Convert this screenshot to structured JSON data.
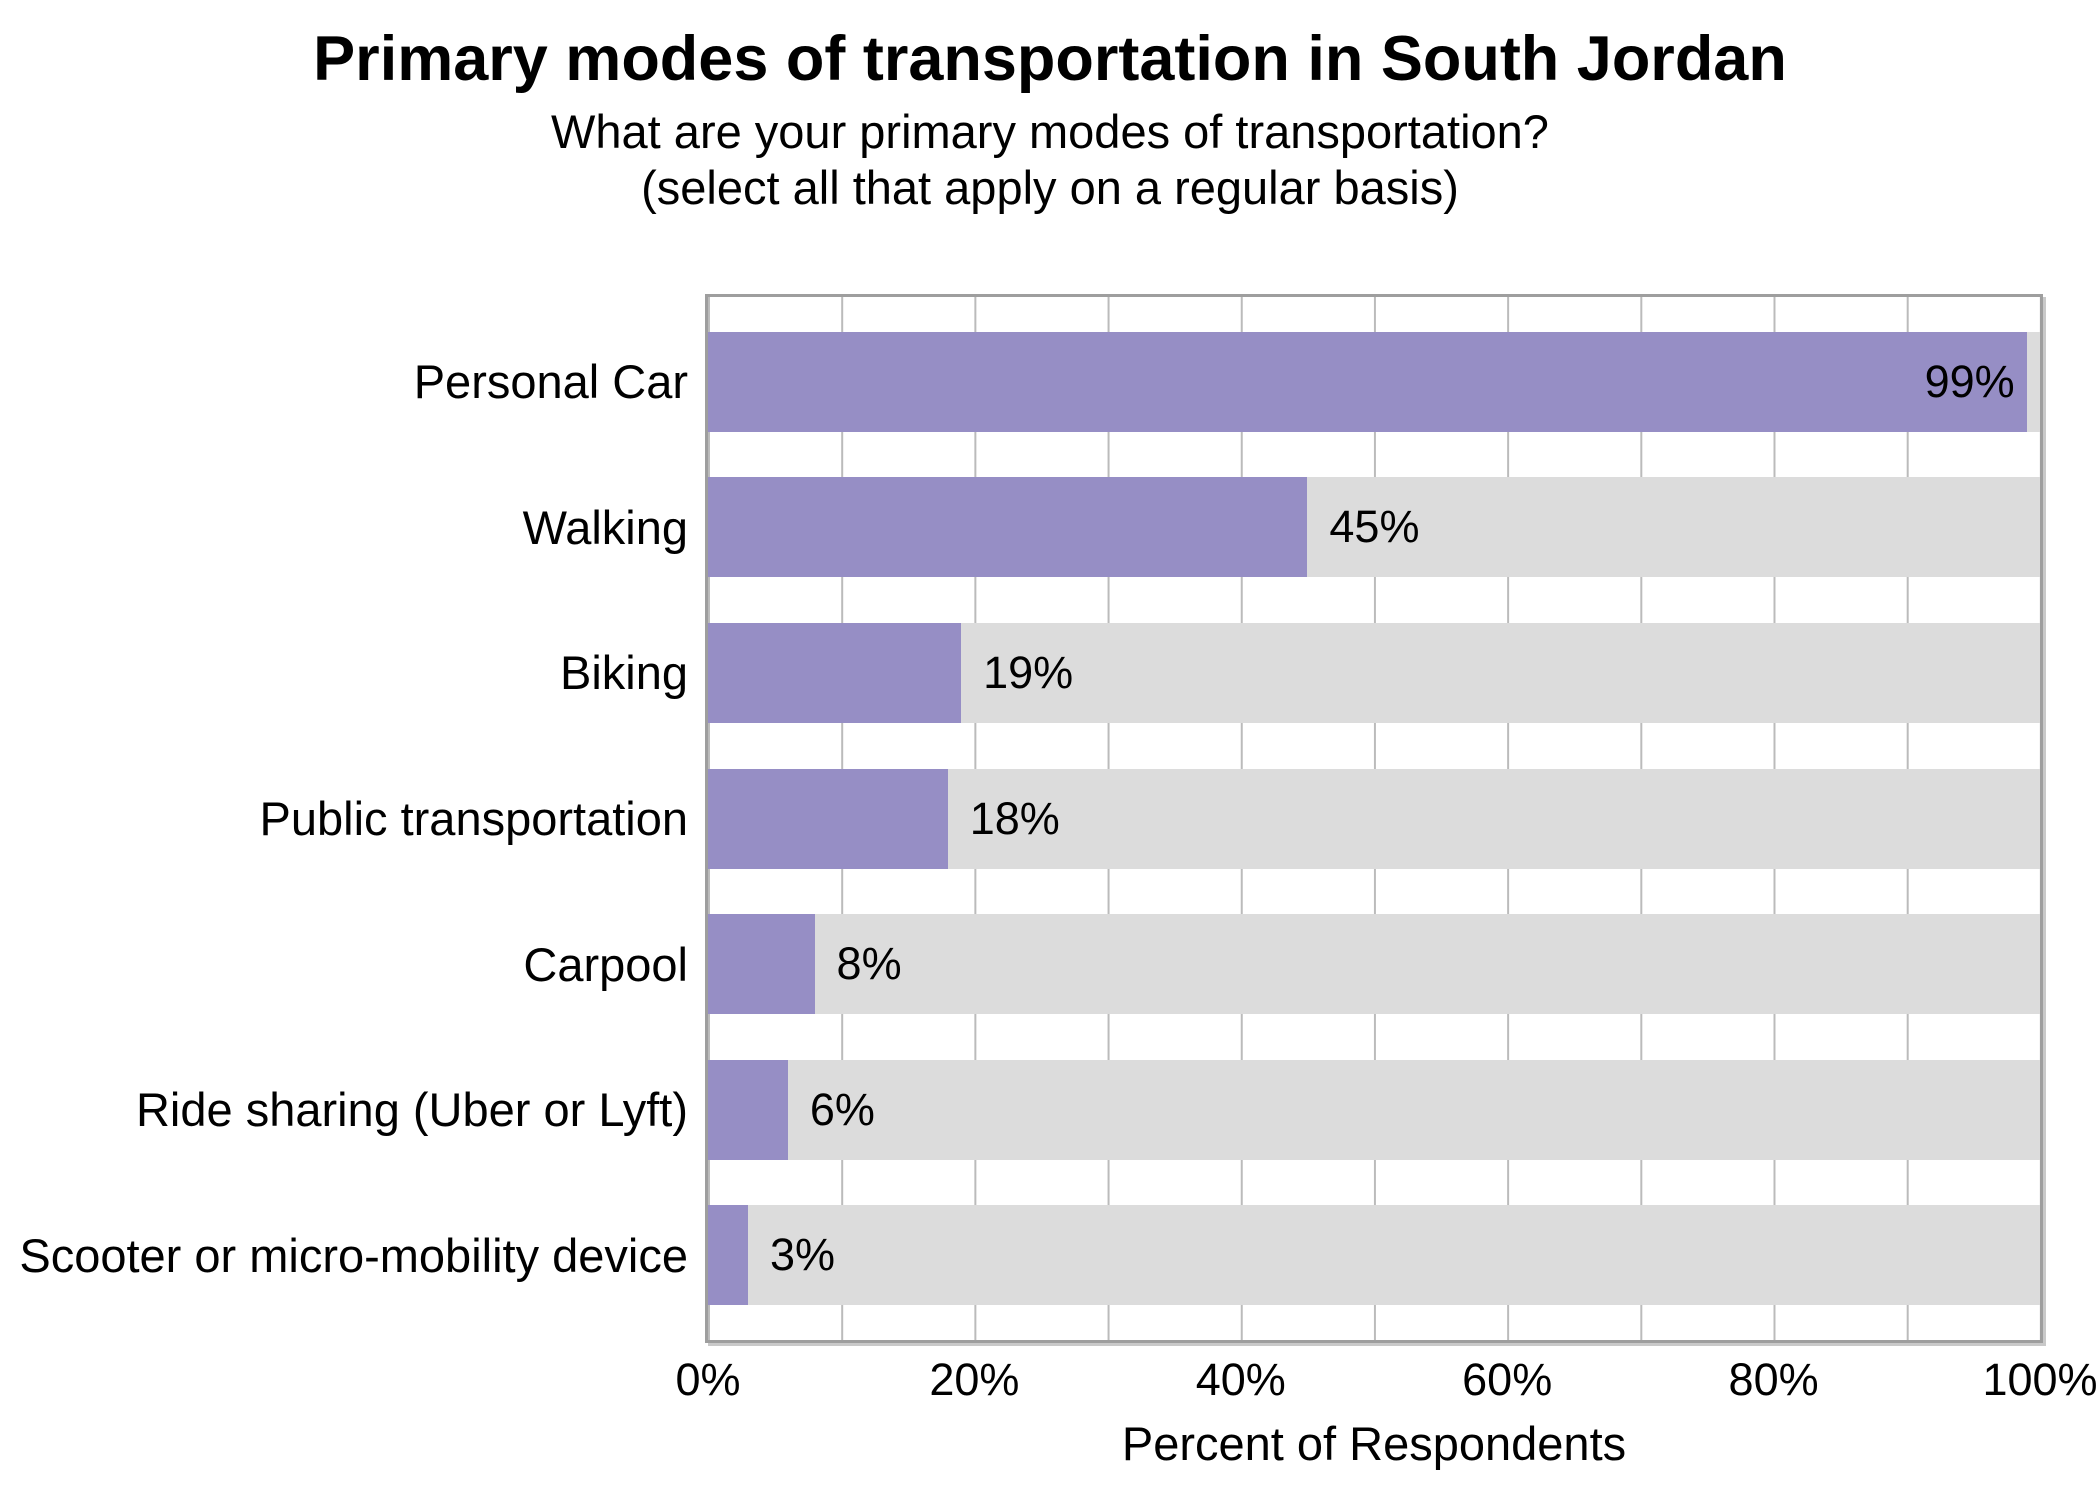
{
  "chart_data": {
    "type": "bar",
    "orientation": "horizontal",
    "title": "Primary modes of transportation in South Jordan",
    "subtitle_line1": "What are your primary modes of transportation?",
    "subtitle_line2": "(select all that apply on a regular basis)",
    "categories": [
      "Personal Car",
      "Walking",
      "Biking",
      "Public transportation",
      "Carpool",
      "Ride sharing (Uber or Lyft)",
      "Scooter or micro-mobility device"
    ],
    "values": [
      99,
      45,
      19,
      18,
      8,
      6,
      3
    ],
    "value_labels": [
      "99%",
      "45%",
      "19%",
      "18%",
      "8%",
      "6%",
      "3%"
    ],
    "xlabel": "Percent of Respondents",
    "x_ticks": [
      "0%",
      "20%",
      "40%",
      "60%",
      "80%",
      "100%"
    ],
    "xlim": [
      0,
      100
    ],
    "gridline_interval_percent": 10,
    "grid": "vertical-behind-bars",
    "legend": "none",
    "colors": {
      "bar": "#968EC5",
      "track": "#DCDCDC",
      "gridline": "#BBBBBB",
      "border": "#9E9E9E",
      "text": "#000000",
      "background": "#FFFFFF"
    }
  }
}
